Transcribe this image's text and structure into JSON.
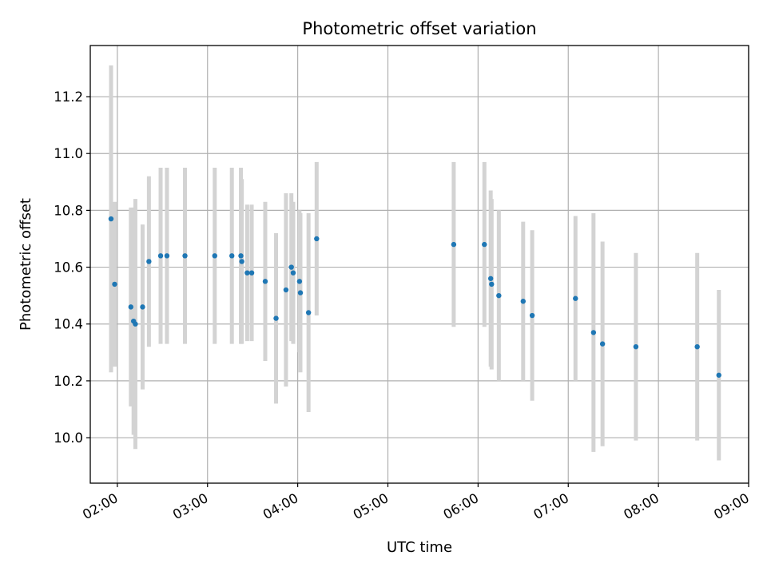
{
  "chart_data": {
    "type": "scatter",
    "title": "Photometric offset variation",
    "xlabel": "UTC time",
    "ylabel": "Photometric offset",
    "grid": true,
    "xlim_hours": [
      1.7,
      9.0
    ],
    "ylim": [
      9.84,
      11.38
    ],
    "xticks": [
      {
        "hour": 2,
        "label": "02:00"
      },
      {
        "hour": 3,
        "label": "03:00"
      },
      {
        "hour": 4,
        "label": "04:00"
      },
      {
        "hour": 5,
        "label": "05:00"
      },
      {
        "hour": 6,
        "label": "06:00"
      },
      {
        "hour": 7,
        "label": "07:00"
      },
      {
        "hour": 8,
        "label": "08:00"
      },
      {
        "hour": 9,
        "label": "09:00"
      }
    ],
    "yticks": [
      {
        "value": 10.0,
        "label": "10.0"
      },
      {
        "value": 10.2,
        "label": "10.2"
      },
      {
        "value": 10.4,
        "label": "10.4"
      },
      {
        "value": 10.6,
        "label": "10.6"
      },
      {
        "value": 10.8,
        "label": "10.8"
      },
      {
        "value": 11.0,
        "label": "11.0"
      },
      {
        "value": 11.2,
        "label": "11.2"
      }
    ],
    "colors": {
      "point": "#1f77b4",
      "errorbar": "#d3d3d3",
      "grid": "#b0b0b0"
    },
    "points": [
      {
        "x": 1.93,
        "y": 10.77,
        "err": 0.54
      },
      {
        "x": 1.97,
        "y": 10.54,
        "err": 0.29
      },
      {
        "x": 2.15,
        "y": 10.46,
        "err": 0.35
      },
      {
        "x": 2.18,
        "y": 10.41,
        "err": 0.4
      },
      {
        "x": 2.2,
        "y": 10.4,
        "err": 0.44
      },
      {
        "x": 2.28,
        "y": 10.46,
        "err": 0.29
      },
      {
        "x": 2.35,
        "y": 10.62,
        "err": 0.3
      },
      {
        "x": 2.48,
        "y": 10.64,
        "err": 0.31
      },
      {
        "x": 2.55,
        "y": 10.64,
        "err": 0.31
      },
      {
        "x": 2.75,
        "y": 10.64,
        "err": 0.31
      },
      {
        "x": 3.08,
        "y": 10.64,
        "err": 0.31
      },
      {
        "x": 3.27,
        "y": 10.64,
        "err": 0.31
      },
      {
        "x": 3.37,
        "y": 10.64,
        "err": 0.31
      },
      {
        "x": 3.38,
        "y": 10.62,
        "err": 0.29
      },
      {
        "x": 3.44,
        "y": 10.58,
        "err": 0.24
      },
      {
        "x": 3.49,
        "y": 10.58,
        "err": 0.24
      },
      {
        "x": 3.64,
        "y": 10.55,
        "err": 0.28
      },
      {
        "x": 3.76,
        "y": 10.42,
        "err": 0.3
      },
      {
        "x": 3.87,
        "y": 10.52,
        "err": 0.34
      },
      {
        "x": 3.93,
        "y": 10.6,
        "err": 0.26
      },
      {
        "x": 3.95,
        "y": 10.58,
        "err": 0.25
      },
      {
        "x": 4.02,
        "y": 10.55,
        "err": 0.25
      },
      {
        "x": 4.03,
        "y": 10.51,
        "err": 0.28
      },
      {
        "x": 4.12,
        "y": 10.44,
        "err": 0.35
      },
      {
        "x": 4.21,
        "y": 10.7,
        "err": 0.27
      },
      {
        "x": 5.73,
        "y": 10.68,
        "err": 0.29
      },
      {
        "x": 6.07,
        "y": 10.68,
        "err": 0.29
      },
      {
        "x": 6.14,
        "y": 10.56,
        "err": 0.31
      },
      {
        "x": 6.15,
        "y": 10.54,
        "err": 0.3
      },
      {
        "x": 6.23,
        "y": 10.5,
        "err": 0.3
      },
      {
        "x": 6.5,
        "y": 10.48,
        "err": 0.28
      },
      {
        "x": 6.6,
        "y": 10.43,
        "err": 0.3
      },
      {
        "x": 7.08,
        "y": 10.49,
        "err": 0.29
      },
      {
        "x": 7.28,
        "y": 10.37,
        "err": 0.42
      },
      {
        "x": 7.38,
        "y": 10.33,
        "err": 0.36
      },
      {
        "x": 7.75,
        "y": 10.32,
        "err": 0.33
      },
      {
        "x": 8.43,
        "y": 10.32,
        "err": 0.33
      },
      {
        "x": 8.67,
        "y": 10.22,
        "err": 0.3
      }
    ]
  }
}
